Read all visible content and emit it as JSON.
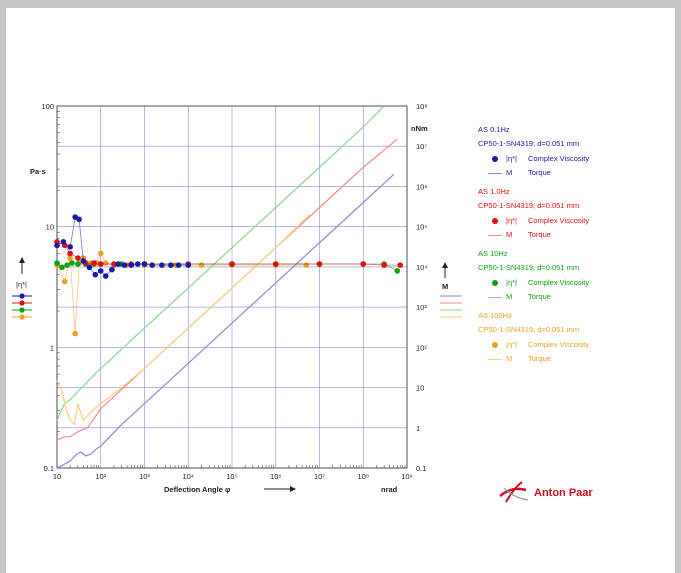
{
  "chart_data": {
    "type": "scatter",
    "xlabel": "Deflection Angle φ",
    "x_unit": "nrad",
    "left_axis_label": "Pa·s",
    "left_axis_symbol": "|η*|",
    "right_axis_label": "nNm",
    "right_axis_symbol": "M",
    "x_scale": "log",
    "y_scale": "log",
    "xlim": [
      10,
      1000000000
    ],
    "ylim": [
      0.1,
      100
    ],
    "y2lim": [
      0.1,
      100000000
    ],
    "grid": true,
    "legend_position": "right",
    "x_ticks": [
      "10",
      "10²",
      "10³",
      "10⁴",
      "10⁵",
      "10⁶",
      "10⁷",
      "10⁸",
      "10⁹"
    ],
    "y_ticks": [
      "0.1",
      "1",
      "10",
      "100"
    ],
    "y2_ticks": [
      "0.1",
      "1",
      "10",
      "10²",
      "10³",
      "10⁴",
      "10⁵",
      "10⁶",
      "10⁷",
      "10⁸"
    ],
    "groups": [
      {
        "title": "AS 0.1Hz",
        "measuring_system": "CP50-1-SN4319; d=0.051 mm",
        "color": "#1a1aa8",
        "line_color": "#8a8ad6",
        "viscosity_symbol": "|η*|",
        "viscosity_name": "Complex Viscosity",
        "torque_symbol": "M",
        "torque_name": "Torque",
        "viscosity": {
          "x": [
            10,
            14,
            20,
            26,
            32,
            40,
            55,
            75,
            100,
            130,
            180,
            250,
            350,
            500,
            700,
            1000,
            1500,
            2500,
            4000,
            6000,
            10000
          ],
          "y": [
            7.0,
            7.5,
            6.8,
            12.0,
            11.5,
            5.2,
            4.6,
            4.0,
            4.3,
            3.9,
            4.4,
            4.9,
            4.8,
            4.8,
            4.9,
            4.9,
            4.8,
            4.8,
            4.8,
            4.8,
            4.8
          ]
        },
        "torque": {
          "x": [
            10,
            14,
            20,
            28,
            35,
            45,
            60,
            80,
            100,
            300,
            1000,
            3000,
            10000,
            100000,
            1000000,
            10000000,
            100000000,
            500000000
          ],
          "y": [
            0.1,
            0.12,
            0.15,
            0.22,
            0.25,
            0.2,
            0.22,
            0.3,
            0.35,
            1.2,
            4,
            12,
            40,
            400,
            4000,
            40000,
            400000,
            2000000
          ]
        }
      },
      {
        "title": "AS 1.0Hz",
        "measuring_system": "CP50-1-SN4319; d=0.051 mm",
        "color": "#e01010",
        "line_color": "#f08a8a",
        "viscosity_symbol": "|η*|",
        "viscosity_name": "Complex Viscosity",
        "torque_symbol": "M",
        "torque_name": "Torque",
        "viscosity": {
          "x": [
            10,
            15,
            20,
            30,
            45,
            70,
            100,
            200,
            500,
            1000,
            10000,
            100000,
            1000000,
            10000000,
            100000000,
            300000000,
            700000000
          ],
          "y": [
            7.5,
            7.0,
            6.0,
            5.5,
            5.0,
            5.0,
            4.9,
            4.9,
            4.9,
            4.9,
            4.9,
            4.9,
            4.9,
            4.9,
            4.9,
            4.8,
            4.8
          ]
        },
        "torque": {
          "x": [
            10,
            15,
            20,
            30,
            50,
            100,
            1000,
            10000,
            100000,
            1000000,
            10000000,
            100000000,
            600000000
          ],
          "y": [
            0.5,
            0.6,
            0.6,
            0.8,
            1.0,
            3.0,
            30,
            300,
            3000,
            30000,
            300000,
            3000000,
            15000000
          ]
        }
      },
      {
        "title": "AS 10Hz",
        "measuring_system": "CP50-1-SN4319; d=0.051 mm",
        "color": "#10a010",
        "line_color": "#8ad68a",
        "viscosity_symbol": "|η*|",
        "viscosity_name": "Complex Viscosity",
        "torque_symbol": "M",
        "torque_name": "Torque",
        "viscosity": {
          "x": [
            10,
            13,
            17,
            22,
            30,
            45,
            70,
            100,
            300,
            1000,
            10000,
            100000,
            1000000,
            10000000,
            100000000,
            300000000,
            600000000
          ],
          "y": [
            5.0,
            4.6,
            4.8,
            5.0,
            4.9,
            4.9,
            4.9,
            4.9,
            4.9,
            4.9,
            4.9,
            4.9,
            4.9,
            4.9,
            4.9,
            4.9,
            4.3
          ]
        },
        "torque": {
          "x": [
            10,
            12,
            15,
            20,
            30,
            100,
            1000,
            10000,
            100000,
            1000000,
            10000000,
            100000000,
            300000000
          ],
          "y": [
            1.5,
            2.5,
            4,
            5,
            8,
            30,
            300,
            3000,
            30000,
            300000,
            3000000,
            30000000,
            100000000
          ]
        }
      },
      {
        "title": "AS 100Hz",
        "measuring_system": "CP50-1-SN4319; d=0.051 mm",
        "color": "#f0a020",
        "line_color": "#f8d080",
        "viscosity_symbol": "|η*|",
        "viscosity_name": "Complex Viscosity",
        "torque_symbol": "M",
        "torque_name": "Torque",
        "viscosity": {
          "x": [
            10,
            15,
            20,
            26,
            32,
            40,
            60,
            80,
            100,
            130,
            200,
            400,
            1000,
            5000,
            20000,
            100000,
            1000000,
            5000000
          ],
          "y": [
            4.8,
            3.5,
            5.5,
            1.3,
            5.0,
            5.5,
            5.0,
            5.0,
            6.0,
            5.0,
            4.8,
            4.8,
            4.8,
            4.8,
            4.8,
            4.8,
            4.8,
            4.8
          ]
        },
        "torque": {
          "x": [
            10,
            13,
            16,
            20,
            25,
            30,
            40,
            60,
            100,
            300,
            1000,
            10000,
            100000,
            1000000,
            6000000
          ],
          "y": [
            15,
            8,
            3,
            1.5,
            1.2,
            4,
            1.5,
            2.5,
            4,
            10,
            30,
            300,
            3000,
            30000,
            200000
          ]
        }
      }
    ]
  },
  "brand": {
    "name": "Anton Paar",
    "color": "#c8101e"
  }
}
